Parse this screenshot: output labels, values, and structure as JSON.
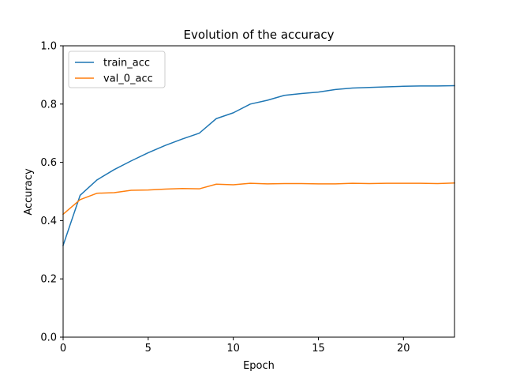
{
  "chart_data": {
    "type": "line",
    "title": "Evolution of the accuracy",
    "xlabel": "Epoch",
    "ylabel": "Accuracy",
    "xlim": [
      0,
      23
    ],
    "ylim": [
      0.0,
      1.0
    ],
    "xticks": [
      0,
      5,
      10,
      15,
      20
    ],
    "xtick_labels": [
      "0",
      "5",
      "10",
      "15",
      "20"
    ],
    "yticks": [
      0.0,
      0.2,
      0.4,
      0.6,
      0.8,
      1.0
    ],
    "ytick_labels": [
      "0.0",
      "0.2",
      "0.4",
      "0.6",
      "0.8",
      "1.0"
    ],
    "grid": false,
    "legend_position": "top-left",
    "x": [
      0,
      1,
      2,
      3,
      4,
      5,
      6,
      7,
      8,
      9,
      10,
      11,
      12,
      13,
      14,
      15,
      16,
      17,
      18,
      19,
      20,
      21,
      22,
      23
    ],
    "series": [
      {
        "name": "train_acc",
        "color": "#1f77b4",
        "values": [
          0.315,
          0.487,
          0.54,
          0.575,
          0.605,
          0.633,
          0.658,
          0.68,
          0.7,
          0.75,
          0.77,
          0.8,
          0.813,
          0.83,
          0.836,
          0.841,
          0.85,
          0.855,
          0.857,
          0.859,
          0.861,
          0.862,
          0.862,
          0.863
        ]
      },
      {
        "name": "val_0_acc",
        "color": "#ff7f0e",
        "values": [
          0.422,
          0.472,
          0.494,
          0.496,
          0.504,
          0.505,
          0.508,
          0.51,
          0.509,
          0.525,
          0.523,
          0.528,
          0.526,
          0.527,
          0.527,
          0.526,
          0.526,
          0.528,
          0.527,
          0.528,
          0.528,
          0.528,
          0.527,
          0.529
        ]
      }
    ]
  }
}
